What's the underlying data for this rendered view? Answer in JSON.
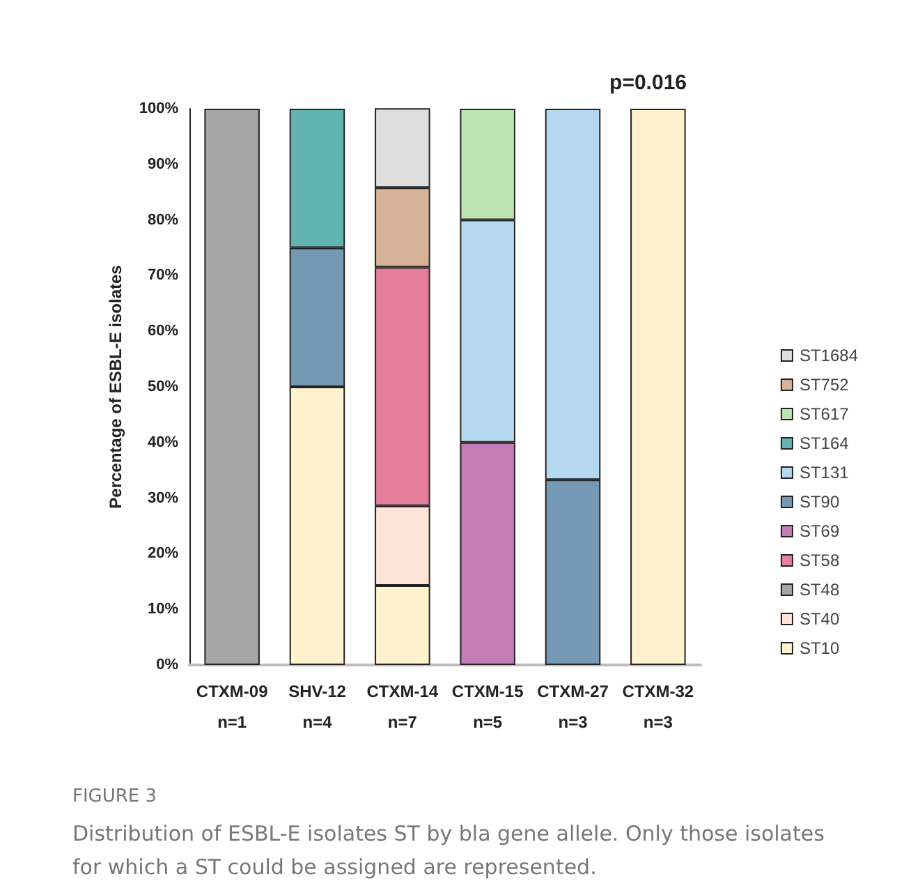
{
  "chart_data": {
    "type": "bar",
    "stacked": true,
    "ylabel": "Percentage of ESBL-E isolates",
    "categories": [
      "CTXM-09\nn=1",
      "SHV-12\nn=4",
      "CTXM-14\nn=7",
      "CTXM-15\nn=5",
      "CTXM-27\nn=3",
      "CTXM-32\nn=3"
    ],
    "series": [
      {
        "name": "ST10",
        "color": "#fff2cc",
        "values": [
          null,
          50,
          14.3,
          null,
          null,
          100
        ]
      },
      {
        "name": "ST40",
        "color": "#fde4d6",
        "values": [
          null,
          null,
          14.3,
          null,
          null,
          null
        ]
      },
      {
        "name": "ST48",
        "color": "#a6a6a6",
        "values": [
          100,
          null,
          null,
          null,
          null,
          null
        ]
      },
      {
        "name": "ST58",
        "color": "#e37f9b",
        "values": [
          null,
          null,
          42.9,
          null,
          null,
          null
        ]
      },
      {
        "name": "ST69",
        "color": "#c57db5",
        "values": [
          null,
          null,
          null,
          40,
          null,
          null
        ]
      },
      {
        "name": "ST90",
        "color": "#7399b4",
        "values": [
          null,
          25,
          null,
          null,
          33.3,
          null
        ]
      },
      {
        "name": "ST131",
        "color": "#b4d8ef",
        "values": [
          null,
          null,
          null,
          40,
          66.7,
          null
        ]
      },
      {
        "name": "ST164",
        "color": "#62b4b3",
        "values": [
          null,
          25,
          null,
          null,
          null,
          null
        ]
      },
      {
        "name": "ST617",
        "color": "#bce3b2",
        "values": [
          null,
          null,
          null,
          20,
          null,
          null
        ]
      },
      {
        "name": "ST752",
        "color": "#d6b396",
        "values": [
          null,
          null,
          14.3,
          null,
          null,
          null
        ]
      },
      {
        "name": "ST1684",
        "color": "#dedede",
        "values": [
          null,
          null,
          14.3,
          null,
          null,
          null
        ]
      }
    ],
    "ylim": [
      0,
      100
    ],
    "yticks": [
      {
        "value": 0,
        "label": "0%"
      },
      {
        "value": 10,
        "label": "10%"
      },
      {
        "value": 20,
        "label": "20%"
      },
      {
        "value": 30,
        "label": "30%"
      },
      {
        "value": 40,
        "label": "40%"
      },
      {
        "value": 50,
        "label": "50%"
      },
      {
        "value": 60,
        "label": "60%"
      },
      {
        "value": 70,
        "label": "70%"
      },
      {
        "value": 80,
        "label": "80%"
      },
      {
        "value": 90,
        "label": "90%"
      },
      {
        "value": 100,
        "label": "100%"
      }
    ],
    "grid": false,
    "legend": "right",
    "annotations": [
      "p=0.016",
      "FIGURE 3",
      "Distribution of ESBL-E isolates ST by bla gene allele. Only those isolates for which a ST could be assigned are represented."
    ]
  }
}
